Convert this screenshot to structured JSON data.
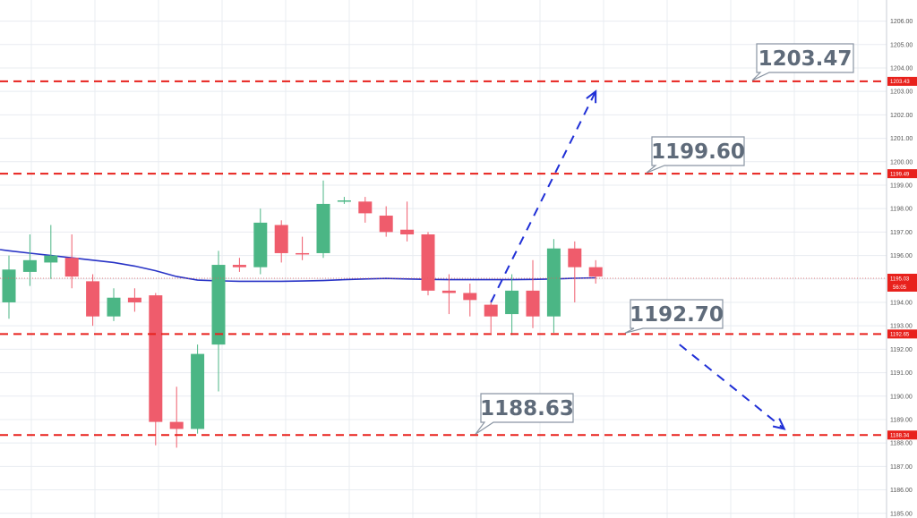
{
  "chart_data": {
    "type": "candlestick",
    "grid": true,
    "y_axis_side": "right",
    "ylim": [
      1184.8,
      1206.9
    ],
    "yticks": [
      1185.0,
      1186.0,
      1187.0,
      1188.0,
      1189.0,
      1190.0,
      1191.0,
      1192.0,
      1193.0,
      1194.0,
      1195.0,
      1196.0,
      1197.0,
      1198.0,
      1199.0,
      1200.0,
      1201.0,
      1202.0,
      1203.0,
      1204.0,
      1205.0,
      1206.0
    ],
    "ytick_labels": [
      "1185.00",
      "1186.00",
      "1187.00",
      "1188.00",
      "1189.00",
      "1190.00",
      "1191.00",
      "1192.00",
      "1193.00",
      "1194.00",
      "1195.00",
      "1196.00",
      "1197.00",
      "1198.00",
      "1199.00",
      "1200.00",
      "1201.00",
      "1202.00",
      "1203.00",
      "1204.00",
      "1205.00",
      "1206.00"
    ],
    "candles": [
      {
        "open": 1194.0,
        "high": 1196.0,
        "low": 1193.3,
        "close": 1195.4
      },
      {
        "open": 1195.3,
        "high": 1196.9,
        "low": 1194.7,
        "close": 1195.8
      },
      {
        "open": 1195.7,
        "high": 1197.3,
        "low": 1195.0,
        "close": 1196.0
      },
      {
        "open": 1195.9,
        "high": 1196.9,
        "low": 1194.6,
        "close": 1195.1
      },
      {
        "open": 1194.9,
        "high": 1195.2,
        "low": 1193.0,
        "close": 1193.4
      },
      {
        "open": 1193.4,
        "high": 1194.6,
        "low": 1193.2,
        "close": 1194.2
      },
      {
        "open": 1194.2,
        "high": 1194.6,
        "low": 1193.6,
        "close": 1194.0
      },
      {
        "open": 1194.3,
        "high": 1194.4,
        "low": 1187.9,
        "close": 1188.9
      },
      {
        "open": 1188.9,
        "high": 1190.4,
        "low": 1187.8,
        "close": 1188.6
      },
      {
        "open": 1188.6,
        "high": 1192.2,
        "low": 1188.4,
        "close": 1191.8
      },
      {
        "open": 1192.2,
        "high": 1196.2,
        "low": 1190.2,
        "close": 1195.6
      },
      {
        "open": 1195.6,
        "high": 1195.9,
        "low": 1195.3,
        "close": 1195.5
      },
      {
        "open": 1195.5,
        "high": 1198.0,
        "low": 1195.2,
        "close": 1197.4
      },
      {
        "open": 1197.3,
        "high": 1197.5,
        "low": 1195.7,
        "close": 1196.1
      },
      {
        "open": 1196.1,
        "high": 1196.8,
        "low": 1195.8,
        "close": 1196.05
      },
      {
        "open": 1196.1,
        "high": 1199.2,
        "low": 1195.9,
        "close": 1198.2
      },
      {
        "open": 1198.35,
        "high": 1198.5,
        "low": 1198.2,
        "close": 1198.35
      },
      {
        "open": 1198.3,
        "high": 1198.5,
        "low": 1197.4,
        "close": 1197.8
      },
      {
        "open": 1197.7,
        "high": 1198.1,
        "low": 1196.8,
        "close": 1197.0
      },
      {
        "open": 1197.1,
        "high": 1198.3,
        "low": 1196.6,
        "close": 1196.9
      },
      {
        "open": 1196.9,
        "high": 1197.0,
        "low": 1194.3,
        "close": 1194.5
      },
      {
        "open": 1194.5,
        "high": 1195.2,
        "low": 1193.5,
        "close": 1194.4
      },
      {
        "open": 1194.4,
        "high": 1194.8,
        "low": 1193.4,
        "close": 1194.1
      },
      {
        "open": 1193.9,
        "high": 1194.1,
        "low": 1192.7,
        "close": 1193.4
      },
      {
        "open": 1193.5,
        "high": 1195.2,
        "low": 1192.6,
        "close": 1194.5
      },
      {
        "open": 1194.5,
        "high": 1195.8,
        "low": 1192.9,
        "close": 1193.4
      },
      {
        "open": 1193.4,
        "high": 1196.7,
        "low": 1192.7,
        "close": 1196.3
      },
      {
        "open": 1196.3,
        "high": 1196.6,
        "low": 1194.0,
        "close": 1195.5
      },
      {
        "open": 1195.5,
        "high": 1195.8,
        "low": 1194.8,
        "close": 1195.1
      }
    ],
    "moving_average": [
      1196.2,
      1196.1,
      1196.0,
      1195.9,
      1195.8,
      1195.7,
      1195.55,
      1195.35,
      1195.1,
      1194.95,
      1194.92,
      1194.9,
      1194.9,
      1194.9,
      1194.91,
      1194.93,
      1194.97,
      1195.0,
      1195.02,
      1195.0,
      1194.98,
      1194.97,
      1194.97,
      1194.97,
      1194.97,
      1194.98,
      1195.0,
      1195.03,
      1195.05
    ],
    "current_price": {
      "value": 1195.03,
      "label": "1195.03",
      "countdown": "56:05"
    },
    "levels": [
      {
        "value": 1203.43,
        "tag": "1203.43",
        "callout": "1203.47"
      },
      {
        "value": 1199.49,
        "tag": "1199.49",
        "callout": "1199.60"
      },
      {
        "value": 1192.65,
        "tag": "1192.65",
        "callout": "1192.70"
      },
      {
        "value": 1188.34,
        "tag": "1188.34",
        "callout": "1188.63"
      }
    ],
    "arrows": [
      {
        "from": [
          23,
          1194.0
        ],
        "to": [
          28,
          1203.0
        ]
      },
      {
        "from": [
          32,
          1192.2
        ],
        "to": [
          37,
          1188.6
        ]
      }
    ],
    "colors": {
      "up": "#4bb685",
      "down": "#ef5c6c",
      "level_line": "#e8211c",
      "tag": "#e8211c",
      "arrow": "#1f2fd6",
      "ma": "#2833c6",
      "price_line": "#e05c5c",
      "grid": "#e8ecf1",
      "callout_border": "#8a95a3"
    }
  }
}
